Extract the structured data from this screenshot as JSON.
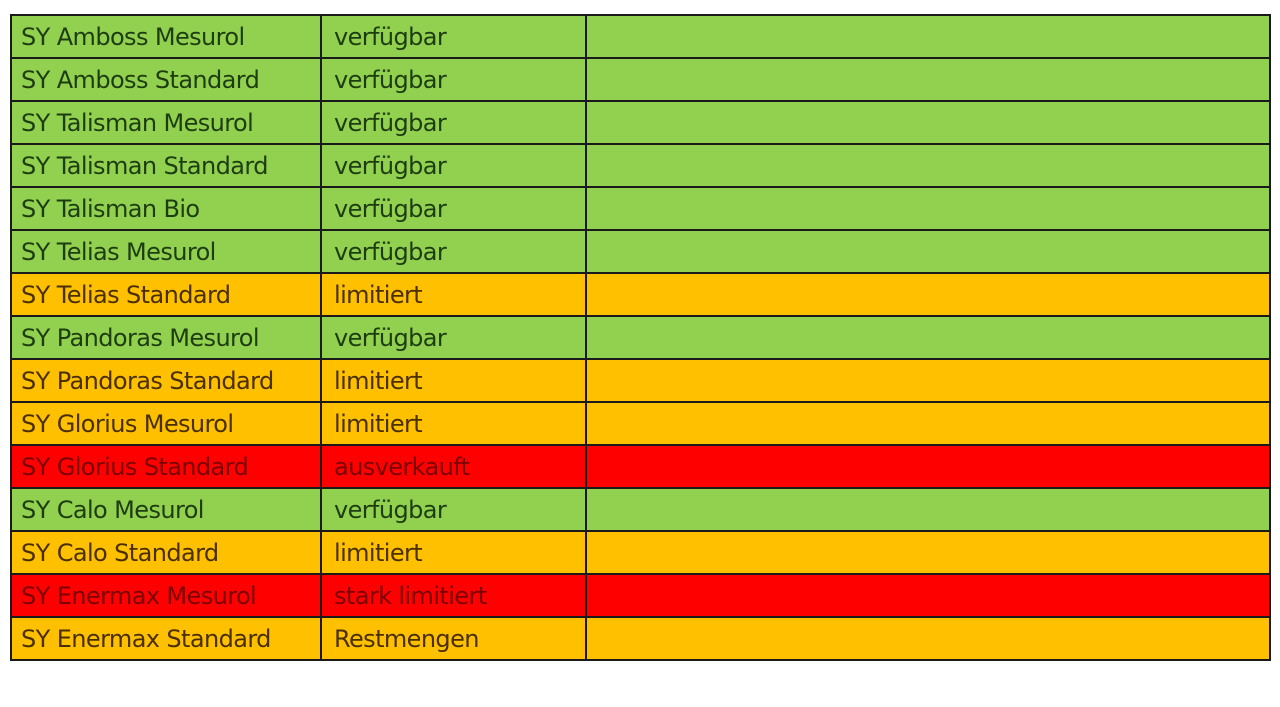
{
  "colors": {
    "available": "#92d050",
    "limited": "#ffc000",
    "soldout": "#ff0000"
  },
  "rows": [
    {
      "product": "SY Amboss Mesurol",
      "status": "verfügbar",
      "level": "verfuegbar"
    },
    {
      "product": "SY Amboss Standard",
      "status": "verfügbar",
      "level": "verfuegbar"
    },
    {
      "product": "SY Talisman Mesurol",
      "status": "verfügbar",
      "level": "verfuegbar"
    },
    {
      "product": "SY Talisman Standard",
      "status": "verfügbar",
      "level": "verfuegbar"
    },
    {
      "product": "SY Talisman Bio",
      "status": "verfügbar",
      "level": "verfuegbar"
    },
    {
      "product": "SY Telias Mesurol",
      "status": "verfügbar",
      "level": "verfuegbar"
    },
    {
      "product": "SY Telias Standard",
      "status": "limitiert",
      "level": "limitiert"
    },
    {
      "product": "SY Pandoras Mesurol",
      "status": "verfügbar",
      "level": "verfuegbar"
    },
    {
      "product": "SY Pandoras Standard",
      "status": "limitiert",
      "level": "limitiert"
    },
    {
      "product": "SY Glorius Mesurol",
      "status": "limitiert",
      "level": "limitiert"
    },
    {
      "product": "SY Glorius Standard",
      "status": "ausverkauft",
      "level": "aus"
    },
    {
      "product": "SY Calo Mesurol",
      "status": "verfügbar",
      "level": "verfuegbar"
    },
    {
      "product": "SY Calo Standard",
      "status": "limitiert",
      "level": "limitiert"
    },
    {
      "product": "SY Enermax Mesurol",
      "status": "stark limitiert",
      "level": "aus"
    },
    {
      "product": "SY Enermax Standard",
      "status": "Restmengen",
      "level": "limitiert"
    }
  ]
}
